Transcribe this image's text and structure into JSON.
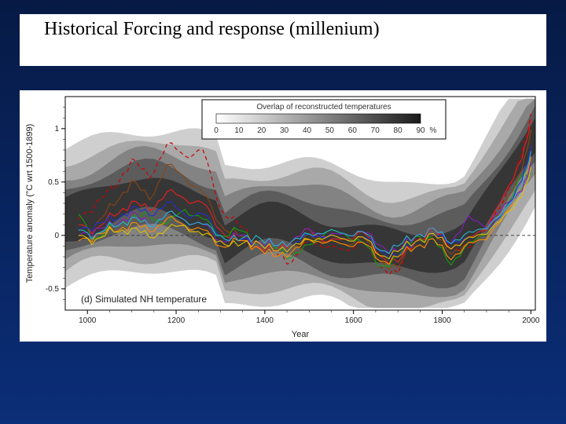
{
  "slide": {
    "title": "Historical Forcing and response (millenium)",
    "background_gradient": [
      "#061a45",
      "#0b2e78"
    ],
    "title_fontsize": 24,
    "title_color": "#000000"
  },
  "chart": {
    "type": "line",
    "panel_label": "(d) Simulated NH temperature",
    "xlabel": "Year",
    "ylabel": "Temperature anomaly (°C wrt 1500-1899)",
    "xlim": [
      950,
      2010
    ],
    "ylim": [
      -0.7,
      1.3
    ],
    "xticks": [
      1000,
      1200,
      1400,
      1600,
      1800,
      2000
    ],
    "yticks": [
      -0.5,
      0,
      0.5,
      1
    ],
    "background_color": "#ffffff",
    "zero_line": true,
    "zero_line_style": "dashed",
    "zero_line_color": "#333333",
    "tick_fontsize": 10,
    "label_fontsize": 11,
    "legend": {
      "title": "Overlap of reconstructed temperatures",
      "values": [
        0,
        10,
        20,
        30,
        40,
        50,
        60,
        70,
        80,
        90
      ],
      "unit": "%",
      "gradient_colors": [
        "#ffffff",
        "#1a1a1a"
      ],
      "border_color": "#000000",
      "title_fontsize": 10
    },
    "uncertainty_band": {
      "description": "Grayscale density band representing overlap of reconstructed temperatures",
      "color_min": "#f0f0f0",
      "color_max": "#404040"
    },
    "series": [
      {
        "name": "sim_red_dashed",
        "color": "#cc0000",
        "dash": "5,4",
        "line_width": 1.2,
        "x": [
          980,
          1020,
          1060,
          1100,
          1140,
          1180,
          1220,
          1260,
          1300,
          1340,
          1380,
          1420,
          1460,
          1500,
          1540,
          1580,
          1620,
          1660,
          1700,
          1740,
          1780,
          1820,
          1860,
          1900,
          1940,
          1980,
          2000
        ],
        "y": [
          0.15,
          0.3,
          0.45,
          0.7,
          0.55,
          0.85,
          0.75,
          0.8,
          0.25,
          0.1,
          -0.05,
          -0.15,
          -0.25,
          -0.05,
          -0.1,
          -0.15,
          -0.05,
          -0.3,
          -0.35,
          0.0,
          0.05,
          -0.1,
          -0.15,
          0.1,
          0.3,
          0.8,
          1.1
        ]
      },
      {
        "name": "sim_brown",
        "color": "#8b4513",
        "dash": "none",
        "line_width": 1.1,
        "x": [
          980,
          1020,
          1060,
          1100,
          1140,
          1180,
          1220,
          1260,
          1300,
          1340,
          1380,
          1420,
          1460,
          1500,
          1540,
          1580,
          1620,
          1660,
          1700,
          1740,
          1780,
          1820,
          1860,
          1900,
          1940,
          1980,
          2000
        ],
        "y": [
          0.05,
          0.1,
          0.3,
          0.5,
          0.35,
          0.65,
          0.55,
          0.4,
          0.1,
          0.0,
          -0.1,
          -0.2,
          -0.15,
          0.0,
          -0.05,
          -0.1,
          0.0,
          -0.25,
          -0.3,
          -0.05,
          0.0,
          -0.15,
          -0.1,
          0.05,
          0.25,
          0.65,
          0.95
        ]
      },
      {
        "name": "sim_red",
        "color": "#e02020",
        "dash": "none",
        "line_width": 1.2,
        "x": [
          980,
          1020,
          1060,
          1100,
          1140,
          1180,
          1220,
          1260,
          1300,
          1340,
          1380,
          1420,
          1460,
          1500,
          1540,
          1580,
          1620,
          1660,
          1700,
          1740,
          1780,
          1820,
          1860,
          1900,
          1940,
          1980,
          2000
        ],
        "y": [
          0.1,
          0.05,
          0.2,
          0.3,
          0.25,
          0.4,
          0.35,
          0.3,
          0.05,
          -0.05,
          -0.1,
          -0.15,
          -0.05,
          0.05,
          -0.05,
          -0.05,
          0.05,
          -0.2,
          -0.25,
          -0.05,
          0.05,
          -0.1,
          -0.05,
          0.1,
          0.35,
          0.75,
          1.05
        ]
      },
      {
        "name": "sim_green",
        "color": "#10a010",
        "dash": "none",
        "line_width": 1.1,
        "x": [
          980,
          1020,
          1060,
          1100,
          1140,
          1180,
          1220,
          1260,
          1300,
          1340,
          1380,
          1420,
          1460,
          1500,
          1540,
          1580,
          1620,
          1660,
          1700,
          1740,
          1780,
          1820,
          1860,
          1900,
          1940,
          1980,
          2000
        ],
        "y": [
          0.2,
          -0.05,
          0.1,
          0.15,
          0.2,
          0.1,
          0.25,
          0.15,
          0.0,
          0.05,
          -0.05,
          -0.1,
          -0.2,
          -0.1,
          0.05,
          0.0,
          -0.05,
          -0.3,
          -0.2,
          0.0,
          -0.05,
          -0.25,
          -0.1,
          0.05,
          0.2,
          0.6,
          0.55
        ]
      },
      {
        "name": "sim_blue",
        "color": "#2030d0",
        "dash": "none",
        "line_width": 1.1,
        "x": [
          980,
          1020,
          1060,
          1100,
          1140,
          1180,
          1220,
          1260,
          1300,
          1340,
          1380,
          1420,
          1460,
          1500,
          1540,
          1580,
          1620,
          1660,
          1700,
          1740,
          1780,
          1820,
          1860,
          1900,
          1940,
          1980,
          2000
        ],
        "y": [
          0.05,
          0.1,
          0.15,
          0.25,
          0.2,
          0.3,
          0.2,
          0.2,
          0.0,
          -0.05,
          -0.05,
          -0.15,
          -0.1,
          0.0,
          0.0,
          -0.05,
          0.0,
          -0.15,
          -0.2,
          -0.05,
          0.0,
          -0.05,
          -0.05,
          0.05,
          0.2,
          0.55,
          0.8
        ]
      },
      {
        "name": "sim_orange",
        "color": "#ff8c00",
        "dash": "none",
        "line_width": 1.1,
        "x": [
          980,
          1020,
          1060,
          1100,
          1140,
          1180,
          1220,
          1260,
          1300,
          1340,
          1380,
          1420,
          1460,
          1500,
          1540,
          1580,
          1620,
          1660,
          1700,
          1740,
          1780,
          1820,
          1860,
          1900,
          1940,
          1980,
          2000
        ],
        "y": [
          -0.05,
          0.0,
          0.05,
          0.1,
          0.05,
          0.15,
          0.1,
          0.05,
          -0.1,
          -0.05,
          -0.1,
          -0.2,
          -0.15,
          -0.05,
          -0.05,
          -0.1,
          -0.05,
          -0.25,
          -0.2,
          -0.1,
          -0.05,
          -0.2,
          -0.1,
          0.0,
          0.15,
          0.5,
          0.7
        ]
      },
      {
        "name": "sim_purple",
        "color": "#8020c0",
        "dash": "none",
        "line_width": 1.1,
        "x": [
          980,
          1020,
          1060,
          1100,
          1140,
          1180,
          1220,
          1260,
          1300,
          1340,
          1380,
          1420,
          1460,
          1500,
          1540,
          1580,
          1620,
          1660,
          1700,
          1740,
          1780,
          1820,
          1860,
          1900,
          1940,
          1980,
          2000
        ],
        "y": [
          0.0,
          0.05,
          0.1,
          0.2,
          0.1,
          0.2,
          0.15,
          0.1,
          -0.05,
          0.0,
          -0.05,
          -0.1,
          -0.05,
          0.05,
          0.0,
          0.0,
          0.05,
          -0.1,
          -0.15,
          0.0,
          0.05,
          -0.05,
          0.15,
          0.1,
          0.25,
          0.45,
          0.65
        ]
      },
      {
        "name": "sim_yellow",
        "color": "#e0c000",
        "dash": "none",
        "line_width": 1.1,
        "x": [
          980,
          1020,
          1060,
          1100,
          1140,
          1180,
          1220,
          1260,
          1300,
          1340,
          1380,
          1420,
          1460,
          1500,
          1540,
          1580,
          1620,
          1660,
          1700,
          1740,
          1780,
          1820,
          1860,
          1900,
          1940,
          1980,
          2000
        ],
        "y": [
          0.0,
          -0.05,
          0.05,
          0.05,
          0.0,
          0.05,
          0.1,
          0.0,
          -0.05,
          -0.1,
          -0.05,
          -0.15,
          -0.1,
          -0.05,
          0.0,
          -0.05,
          0.0,
          -0.2,
          -0.15,
          -0.05,
          0.0,
          -0.1,
          -0.05,
          0.05,
          0.15,
          0.4,
          0.6
        ]
      },
      {
        "name": "sim_cyan",
        "color": "#20c0e0",
        "dash": "none",
        "line_width": 1.0,
        "x": [
          980,
          1020,
          1060,
          1100,
          1140,
          1180,
          1220,
          1260,
          1300,
          1340,
          1380,
          1420,
          1460,
          1500,
          1540,
          1580,
          1620,
          1660,
          1700,
          1740,
          1780,
          1820,
          1860,
          1900,
          1940,
          1980,
          2000
        ],
        "y": [
          0.05,
          0.0,
          0.1,
          0.15,
          0.1,
          0.2,
          0.15,
          0.1,
          0.0,
          -0.05,
          0.0,
          -0.1,
          -0.05,
          0.0,
          0.05,
          0.0,
          0.05,
          -0.15,
          -0.1,
          0.0,
          0.05,
          -0.05,
          0.0,
          0.1,
          0.2,
          0.5,
          0.75
        ]
      }
    ]
  }
}
